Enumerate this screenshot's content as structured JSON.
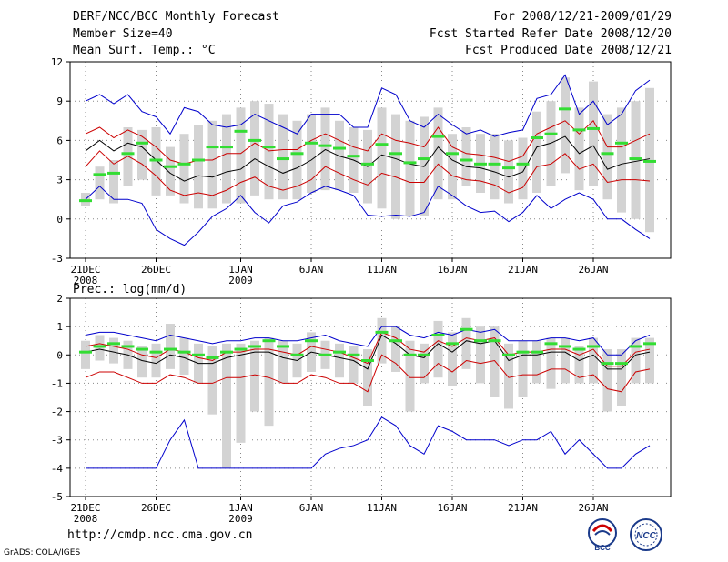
{
  "header": {
    "title": "DERF/NCC/BCC Monthly Forecast",
    "member_size": "Member Size=40",
    "variable1": "Mean Surf. Temp.: °C",
    "period": "For 2008/12/21-2009/01/29",
    "start_refer": "Fcst Started Refer Date 2008/12/20",
    "produced": "Fcst Produced Date 2008/12/21"
  },
  "footer": {
    "url": "http://cmdp.ncc.cma.gov.cn",
    "grads": "GrADS: COLA/IGES",
    "logo_left": "BCC",
    "logo_right": "NCC"
  },
  "colors": {
    "envelope": "#0000cc",
    "spread": "#cc0000",
    "mean": "#000000",
    "box": "#d3d3d3",
    "ensemble_marker": "#33dd33"
  },
  "chart_data": [
    {
      "type": "line",
      "title": "Mean Surf. Temp.: °C",
      "ylim": [
        -3,
        12
      ],
      "yticks": [
        "12",
        "9",
        "6",
        "3",
        "0",
        "-3"
      ],
      "grid": "dotted",
      "x_days": 40,
      "x_ticks": [
        {
          "day": 0,
          "label": "21DEC",
          "sub": "2008"
        },
        {
          "day": 5,
          "label": "26DEC",
          "sub": ""
        },
        {
          "day": 11,
          "label": "1JAN",
          "sub": "2009"
        },
        {
          "day": 16,
          "label": "6JAN",
          "sub": ""
        },
        {
          "day": 21,
          "label": "11JAN",
          "sub": ""
        },
        {
          "day": 26,
          "label": "16JAN",
          "sub": ""
        },
        {
          "day": 31,
          "label": "21JAN",
          "sub": ""
        },
        {
          "day": 36,
          "label": "26JAN",
          "sub": ""
        }
      ],
      "series": {
        "blue_upper": [
          9.0,
          9.5,
          8.8,
          9.5,
          8.2,
          7.8,
          6.5,
          8.5,
          8.2,
          7.2,
          7.0,
          7.2,
          8.0,
          7.5,
          7.0,
          6.5,
          8.0,
          8.0,
          8.0,
          7.0,
          7.0,
          10.0,
          9.5,
          7.5,
          7.0,
          8.0,
          7.2,
          6.5,
          6.8,
          6.3,
          6.6,
          6.8,
          9.2,
          9.5,
          11.0,
          8.0,
          9.0,
          7.2,
          8.0,
          9.8,
          10.6
        ],
        "red_upper": [
          6.5,
          7.0,
          6.2,
          6.8,
          6.3,
          5.5,
          4.5,
          4.2,
          4.5,
          4.5,
          5.0,
          5.0,
          5.8,
          5.2,
          5.3,
          5.3,
          6.0,
          6.5,
          6.0,
          5.5,
          5.2,
          6.5,
          6.0,
          5.8,
          5.5,
          7.0,
          5.5,
          5.0,
          4.9,
          4.7,
          4.4,
          4.8,
          6.5,
          7.0,
          7.5,
          6.5,
          7.5,
          5.5,
          5.5,
          6.0,
          6.5
        ],
        "mean": [
          5.2,
          6.0,
          5.2,
          5.8,
          5.5,
          4.5,
          3.5,
          2.9,
          3.3,
          3.2,
          3.6,
          3.8,
          4.6,
          4.0,
          3.5,
          3.9,
          4.5,
          5.3,
          4.8,
          4.5,
          4.0,
          4.9,
          4.6,
          4.2,
          4.0,
          5.5,
          4.5,
          4.0,
          3.9,
          3.6,
          3.2,
          3.6,
          5.5,
          5.8,
          6.3,
          5.0,
          5.6,
          3.8,
          4.2,
          4.4,
          4.6
        ],
        "red_lower": [
          4.0,
          5.2,
          4.2,
          4.8,
          4.2,
          3.3,
          2.2,
          1.8,
          2.0,
          1.8,
          2.2,
          2.8,
          3.2,
          2.5,
          2.2,
          2.5,
          3.0,
          4.0,
          3.5,
          3.0,
          2.6,
          3.5,
          3.2,
          2.8,
          2.8,
          4.2,
          3.3,
          3.0,
          2.9,
          2.6,
          2.0,
          2.4,
          4.0,
          4.2,
          5.0,
          3.8,
          4.2,
          2.8,
          3.0,
          3.0,
          2.9
        ],
        "blue_lower": [
          1.5,
          2.5,
          1.5,
          1.5,
          1.2,
          -0.8,
          -1.5,
          -2.0,
          -1.0,
          0.2,
          0.8,
          1.8,
          0.5,
          -0.3,
          1.0,
          1.3,
          2.0,
          2.5,
          2.2,
          1.8,
          0.3,
          0.2,
          0.3,
          0.2,
          0.5,
          2.5,
          1.8,
          1.0,
          0.5,
          0.6,
          -0.2,
          0.5,
          1.8,
          0.8,
          1.5,
          2.0,
          1.5,
          0.0,
          0.0,
          -0.8,
          -1.5
        ]
      },
      "boxes": [
        [
          1.0,
          2.0
        ],
        [
          1.5,
          4.0
        ],
        [
          1.2,
          4.5
        ],
        [
          2.5,
          7.0
        ],
        [
          3.0,
          6.8
        ],
        [
          1.8,
          7.0
        ],
        [
          1.8,
          5.5
        ],
        [
          1.2,
          6.5
        ],
        [
          0.8,
          7.2
        ],
        [
          0.8,
          7.5
        ],
        [
          1.2,
          8.0
        ],
        [
          1.2,
          8.5
        ],
        [
          1.8,
          9.0
        ],
        [
          1.5,
          8.8
        ],
        [
          1.5,
          8.0
        ],
        [
          1.5,
          7.5
        ],
        [
          2.0,
          8.0
        ],
        [
          2.2,
          8.5
        ],
        [
          2.2,
          7.5
        ],
        [
          2.0,
          7.0
        ],
        [
          1.2,
          6.8
        ],
        [
          0.8,
          8.5
        ],
        [
          0.0,
          8.0
        ],
        [
          0.2,
          7.5
        ],
        [
          0.2,
          7.8
        ],
        [
          1.5,
          8.5
        ],
        [
          1.5,
          6.5
        ],
        [
          2.5,
          7.0
        ],
        [
          2.0,
          6.5
        ],
        [
          1.5,
          6.5
        ],
        [
          1.2,
          6.0
        ],
        [
          1.5,
          6.2
        ],
        [
          2.0,
          8.2
        ],
        [
          2.5,
          9.0
        ],
        [
          3.5,
          10.8
        ],
        [
          2.2,
          8.5
        ],
        [
          2.5,
          10.5
        ],
        [
          1.5,
          8.0
        ],
        [
          0.5,
          8.5
        ],
        [
          0.0,
          9.0
        ],
        [
          -1.0,
          10.0
        ]
      ],
      "ensemble": [
        1.4,
        3.4,
        3.5,
        5.0,
        5.8,
        4.5,
        4.0,
        4.2,
        4.5,
        5.5,
        5.5,
        6.7,
        6.0,
        5.5,
        4.6,
        5.0,
        5.8,
        5.6,
        5.4,
        4.8,
        4.2,
        5.7,
        5.0,
        4.3,
        4.6,
        6.3,
        5.0,
        4.5,
        4.2,
        4.2,
        3.9,
        4.2,
        6.2,
        6.5,
        8.4,
        6.8,
        6.9,
        5.0,
        5.8,
        4.6,
        4.4
      ]
    },
    {
      "type": "line",
      "title": "Prec.: log(mm/d)",
      "ylim": [
        -5,
        2
      ],
      "yticks": [
        "2",
        "1",
        "0",
        "-1",
        "-2",
        "-3",
        "-4",
        "-5"
      ],
      "grid": "dotted",
      "x_days": 40,
      "x_ticks": [
        {
          "day": 0,
          "label": "21DEC",
          "sub": "2008"
        },
        {
          "day": 5,
          "label": "26DEC",
          "sub": ""
        },
        {
          "day": 11,
          "label": "1JAN",
          "sub": "2009"
        },
        {
          "day": 16,
          "label": "6JAN",
          "sub": ""
        },
        {
          "day": 21,
          "label": "11JAN",
          "sub": ""
        },
        {
          "day": 26,
          "label": "16JAN",
          "sub": ""
        },
        {
          "day": 31,
          "label": "21JAN",
          "sub": ""
        },
        {
          "day": 36,
          "label": "26JAN",
          "sub": ""
        }
      ],
      "series": {
        "blue_upper": [
          0.7,
          0.8,
          0.8,
          0.7,
          0.6,
          0.5,
          0.7,
          0.6,
          0.5,
          0.4,
          0.5,
          0.5,
          0.6,
          0.6,
          0.5,
          0.5,
          0.6,
          0.7,
          0.5,
          0.4,
          0.3,
          1.0,
          1.0,
          0.7,
          0.6,
          0.8,
          0.7,
          0.9,
          0.8,
          0.9,
          0.5,
          0.5,
          0.5,
          0.6,
          0.6,
          0.5,
          0.6,
          0.0,
          0.0,
          0.5,
          0.7
        ],
        "red_upper": [
          0.3,
          0.4,
          0.3,
          0.2,
          0.0,
          -0.1,
          0.2,
          0.1,
          -0.1,
          -0.2,
          0.1,
          0.1,
          0.2,
          0.2,
          0.1,
          0.0,
          0.3,
          0.2,
          0.1,
          -0.1,
          -0.3,
          0.8,
          0.6,
          0.2,
          0.1,
          0.5,
          0.3,
          0.6,
          0.5,
          0.6,
          0.0,
          0.1,
          0.1,
          0.2,
          0.2,
          0.0,
          0.2,
          -0.4,
          -0.4,
          0.1,
          0.2
        ],
        "mean": [
          0.1,
          0.2,
          0.1,
          0.0,
          -0.2,
          -0.3,
          0.0,
          -0.1,
          -0.3,
          -0.3,
          -0.1,
          0.0,
          0.1,
          0.1,
          -0.1,
          -0.2,
          0.1,
          0.0,
          -0.1,
          -0.2,
          -0.5,
          0.7,
          0.4,
          0.0,
          -0.1,
          0.4,
          0.1,
          0.5,
          0.4,
          0.5,
          -0.2,
          0.0,
          0.0,
          0.1,
          0.1,
          -0.2,
          0.0,
          -0.5,
          -0.5,
          0.0,
          0.1
        ],
        "red_lower": [
          -0.8,
          -0.6,
          -0.6,
          -0.8,
          -1.0,
          -1.0,
          -0.7,
          -0.8,
          -1.0,
          -1.0,
          -0.8,
          -0.8,
          -0.7,
          -0.8,
          -1.0,
          -1.0,
          -0.7,
          -0.8,
          -1.0,
          -1.0,
          -1.3,
          0.0,
          -0.3,
          -0.8,
          -0.8,
          -0.3,
          -0.6,
          -0.2,
          -0.3,
          -0.2,
          -0.8,
          -0.7,
          -0.7,
          -0.5,
          -0.5,
          -0.8,
          -0.7,
          -1.2,
          -1.3,
          -0.6,
          -0.5
        ],
        "blue_lower": [
          -4.0,
          -4.0,
          -4.0,
          -4.0,
          -4.0,
          -4.0,
          -3.0,
          -2.3,
          -4.0,
          -4.0,
          -4.0,
          -4.0,
          -4.0,
          -4.0,
          -4.0,
          -4.0,
          -4.0,
          -3.5,
          -3.3,
          -3.2,
          -3.0,
          -2.2,
          -2.5,
          -3.2,
          -3.5,
          -2.5,
          -2.7,
          -3.0,
          -3.0,
          -3.0,
          -3.2,
          -3.0,
          -3.0,
          -2.7,
          -3.5,
          -3.0,
          -3.5,
          -4.0,
          -4.0,
          -3.5,
          -3.2
        ]
      },
      "boxes": [
        [
          -0.5,
          0.5
        ],
        [
          -0.2,
          0.7
        ],
        [
          -0.3,
          0.6
        ],
        [
          -0.5,
          0.5
        ],
        [
          -0.8,
          0.3
        ],
        [
          -0.8,
          0.4
        ],
        [
          -0.5,
          1.1
        ],
        [
          -0.7,
          0.6
        ],
        [
          -1.0,
          0.4
        ],
        [
          -2.1,
          0.3
        ],
        [
          -4.0,
          0.4
        ],
        [
          -3.1,
          0.4
        ],
        [
          -2.0,
          0.5
        ],
        [
          -2.5,
          0.6
        ],
        [
          -1.0,
          0.5
        ],
        [
          -0.8,
          0.4
        ],
        [
          -0.6,
          0.8
        ],
        [
          -0.5,
          0.5
        ],
        [
          -0.8,
          0.4
        ],
        [
          -1.0,
          0.3
        ],
        [
          -1.8,
          0.2
        ],
        [
          -0.3,
          1.3
        ],
        [
          -0.6,
          1.0
        ],
        [
          -2.0,
          0.5
        ],
        [
          -1.0,
          0.4
        ],
        [
          -0.8,
          1.2
        ],
        [
          -1.1,
          0.8
        ],
        [
          -0.5,
          1.3
        ],
        [
          -1.0,
          1.0
        ],
        [
          -1.5,
          1.0
        ],
        [
          -1.9,
          0.4
        ],
        [
          -1.5,
          0.5
        ],
        [
          -1.0,
          0.5
        ],
        [
          -1.2,
          0.6
        ],
        [
          -1.0,
          0.6
        ],
        [
          -1.0,
          0.3
        ],
        [
          -1.0,
          0.6
        ],
        [
          -2.0,
          0.2
        ],
        [
          -1.8,
          0.2
        ],
        [
          -1.0,
          0.6
        ],
        [
          -1.0,
          0.6
        ]
      ],
      "ensemble": [
        0.1,
        0.3,
        0.4,
        0.3,
        0.2,
        0.1,
        0.2,
        0.1,
        0.0,
        -0.1,
        0.1,
        0.2,
        0.3,
        0.5,
        0.3,
        0.0,
        0.5,
        0.0,
        0.1,
        0.0,
        -0.2,
        0.8,
        0.5,
        0.0,
        0.0,
        0.7,
        0.4,
        0.9,
        0.5,
        0.5,
        0.0,
        0.1,
        0.1,
        0.4,
        0.3,
        0.2,
        0.3,
        -0.3,
        -0.3,
        0.3,
        0.4
      ]
    }
  ]
}
